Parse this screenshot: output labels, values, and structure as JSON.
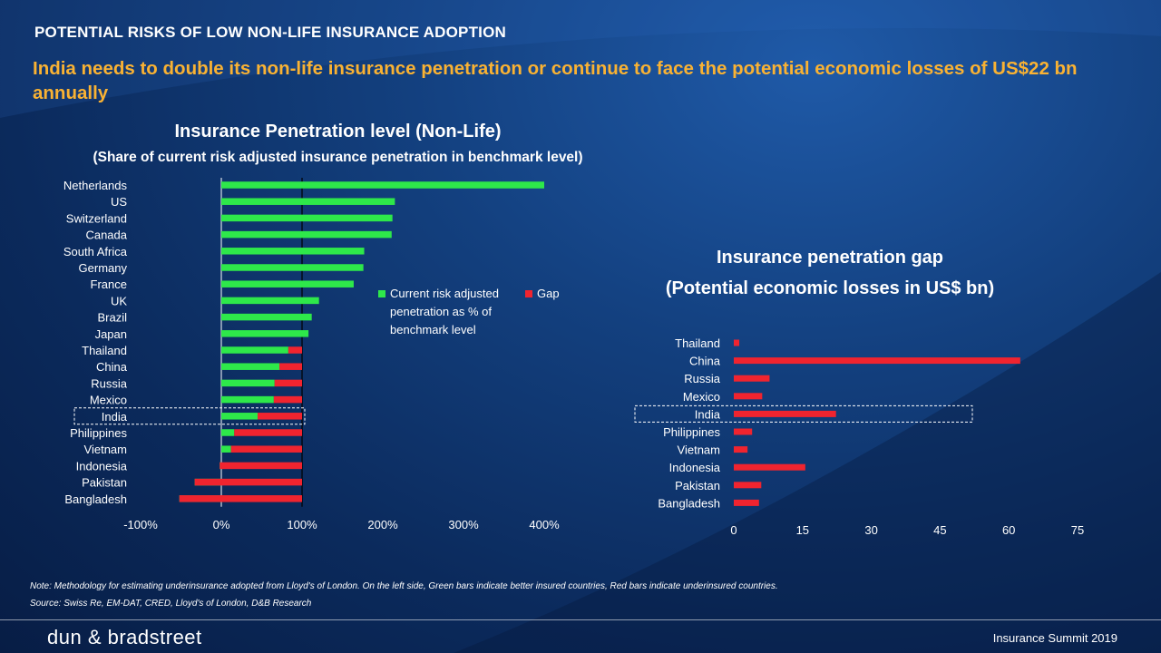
{
  "kicker": "POTENTIAL RISKS OF LOW NON-LIFE INSURANCE ADOPTION",
  "headline": "India needs to double its non-life insurance penetration or continue to face the potential economic losses of US$22 bn annually",
  "note": "Note: Methodology for estimating underinsurance adopted from Lloyd's of London. On the left side, Green bars indicate better insured countries, Red bars indicate underinsured countries.",
  "source": "Source: Swiss Re, EM-DAT, CRED, Lloyd's of London, D&B Research",
  "logo_text": "dun & bradstreet",
  "footer_right": "Insurance Summit 2019",
  "colors": {
    "green": "#2ee84a",
    "red": "#f0242f",
    "accent": "#f9b233"
  },
  "chart_data": [
    {
      "type": "bar",
      "title": "Insurance Penetration level (Non-Life)",
      "subtitle": "(Share of current risk adjusted insurance penetration in benchmark level)",
      "orientation": "horizontal",
      "categories": [
        "Netherlands",
        "US",
        "Switzerland",
        "Canada",
        "South Africa",
        "Germany",
        "France",
        "UK",
        "Brazil",
        "Japan",
        "Thailand",
        "China",
        "Russia",
        "Mexico",
        "India",
        "Philippines",
        "Vietnam",
        "Indonesia",
        "Pakistan",
        "Bangladesh"
      ],
      "series": [
        {
          "name": "Current risk adjusted penetration as % of benchmark level",
          "color": "#2ee84a",
          "values": [
            400,
            215,
            212,
            211,
            177,
            176,
            164,
            121,
            112,
            108,
            83,
            72,
            66,
            65,
            45,
            16,
            12,
            -2,
            -33,
            -52
          ]
        },
        {
          "name": "Gap",
          "color": "#f0242f",
          "values": [
            0,
            0,
            0,
            0,
            0,
            0,
            0,
            0,
            0,
            0,
            17,
            28,
            34,
            35,
            55,
            84,
            88,
            102,
            133,
            152
          ]
        }
      ],
      "xlim": [
        -100,
        400
      ],
      "xticks": [
        "-100%",
        "0%",
        "100%",
        "200%",
        "300%",
        "400%"
      ],
      "xtick_values": [
        -100,
        0,
        100,
        200,
        300,
        400
      ],
      "reference_line": 100,
      "highlight": "India",
      "legend": "right"
    },
    {
      "type": "bar",
      "title": "Insurance penetration gap",
      "subtitle": "(Potential economic losses in US$ bn)",
      "orientation": "horizontal",
      "categories": [
        "Thailand",
        "China",
        "Russia",
        "Mexico",
        "India",
        "Philippines",
        "Vietnam",
        "Indonesia",
        "Pakistan",
        "Bangladesh"
      ],
      "series": [
        {
          "name": "",
          "color": "#f0242f",
          "values": [
            1.2,
            62.5,
            7.8,
            6.2,
            22.3,
            4.0,
            3.0,
            15.6,
            6.0,
            5.5
          ]
        }
      ],
      "xlim": [
        0,
        75
      ],
      "xticks": [
        "0",
        "15",
        "30",
        "45",
        "60",
        "75"
      ],
      "xtick_values": [
        0,
        15,
        30,
        45,
        60,
        75
      ],
      "highlight": "India"
    }
  ]
}
